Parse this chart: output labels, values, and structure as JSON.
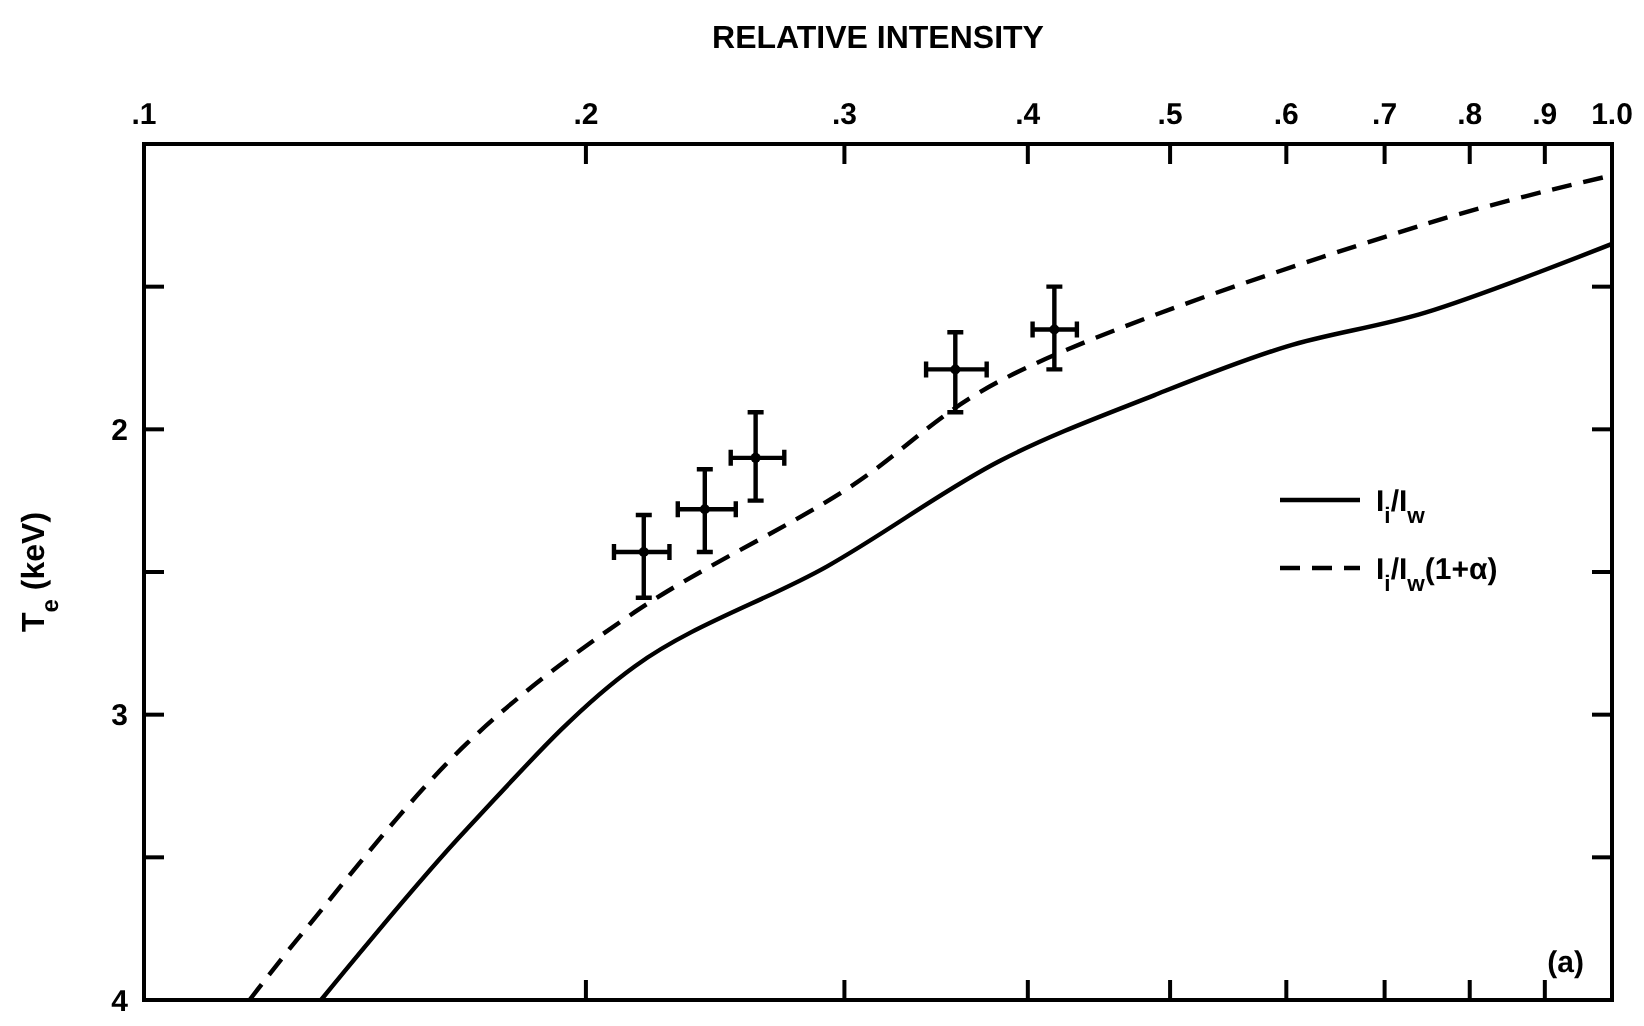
{
  "chart_data": {
    "type": "line",
    "xlabel": "RELATIVE INTENSITY",
    "ylabel": "T$_{e}$ (keV)",
    "log": "x",
    "xlim": [
      0.1,
      1
    ],
    "xticks": [
      {
        "value": 0.1,
        "label": ".1"
      },
      {
        "value": 0.2,
        "label": ".2"
      },
      {
        "value": 0.3,
        "label": ".3"
      },
      {
        "value": 0.4,
        "label": ".4"
      },
      {
        "value": 0.5,
        "label": ".5"
      },
      {
        "value": 0.6,
        "label": ".6"
      },
      {
        "value": 0.7,
        "label": ".7"
      },
      {
        "value": 0.8,
        "label": ".8"
      },
      {
        "value": 0.9,
        "label": ".9"
      },
      {
        "value": 1,
        "label": "1.0"
      }
    ],
    "ylim": [
      4,
      1
    ],
    "yticks": [
      {
        "value": 1,
        "label": null
      },
      {
        "value": 1.5,
        "label": null
      },
      2,
      {
        "value": 2.5,
        "label": null
      },
      3,
      {
        "value": 3.5,
        "label": null
      },
      4
    ],
    "grid": false,
    "legend": "right",
    "marker": "none",
    "series": [
      {
        "name": "I$_{i}$/I$_{w}$",
        "color": "#000000",
        "line_style": "solid",
        "x": [
          0.132,
          0.166,
          0.216,
          0.292,
          0.383,
          0.488,
          0.6,
          0.747,
          1.0
        ],
        "values": [
          4.0,
          3.4,
          2.83,
          2.48,
          2.11,
          1.88,
          1.71,
          1.59,
          1.35
        ]
      },
      {
        "name": "I$_{i}$/I$_{w}$(1+α)",
        "color": "#000000",
        "line_style": "dashed",
        "x": [
          0.118,
          0.128,
          0.166,
          0.216,
          0.301,
          0.383,
          0.747,
          1.0
        ],
        "values": [
          4.0,
          3.77,
          3.1,
          2.64,
          2.21,
          1.83,
          1.28,
          1.11
        ]
      },
      {
        "type": "scatter",
        "color": "#000000",
        "marker": "circle",
        "x": [
          0.219,
          0.241,
          0.261,
          0.357,
          0.417
        ],
        "values": [
          2.43,
          2.28,
          2.1,
          1.79,
          1.65
        ],
        "errors": [
          [
            2.3,
            2.59
          ],
          [
            2.14,
            2.43
          ],
          [
            1.94,
            2.25
          ],
          [
            1.66,
            1.94
          ],
          [
            1.5,
            1.79
          ]
        ],
        "xerrors": [
          [
            0.209,
            0.228
          ],
          [
            0.231,
            0.253
          ],
          [
            0.251,
            0.273
          ],
          [
            0.341,
            0.375
          ],
          [
            0.403,
            0.432
          ]
        ]
      }
    ],
    "annotations": [
      "(a)"
    ]
  }
}
